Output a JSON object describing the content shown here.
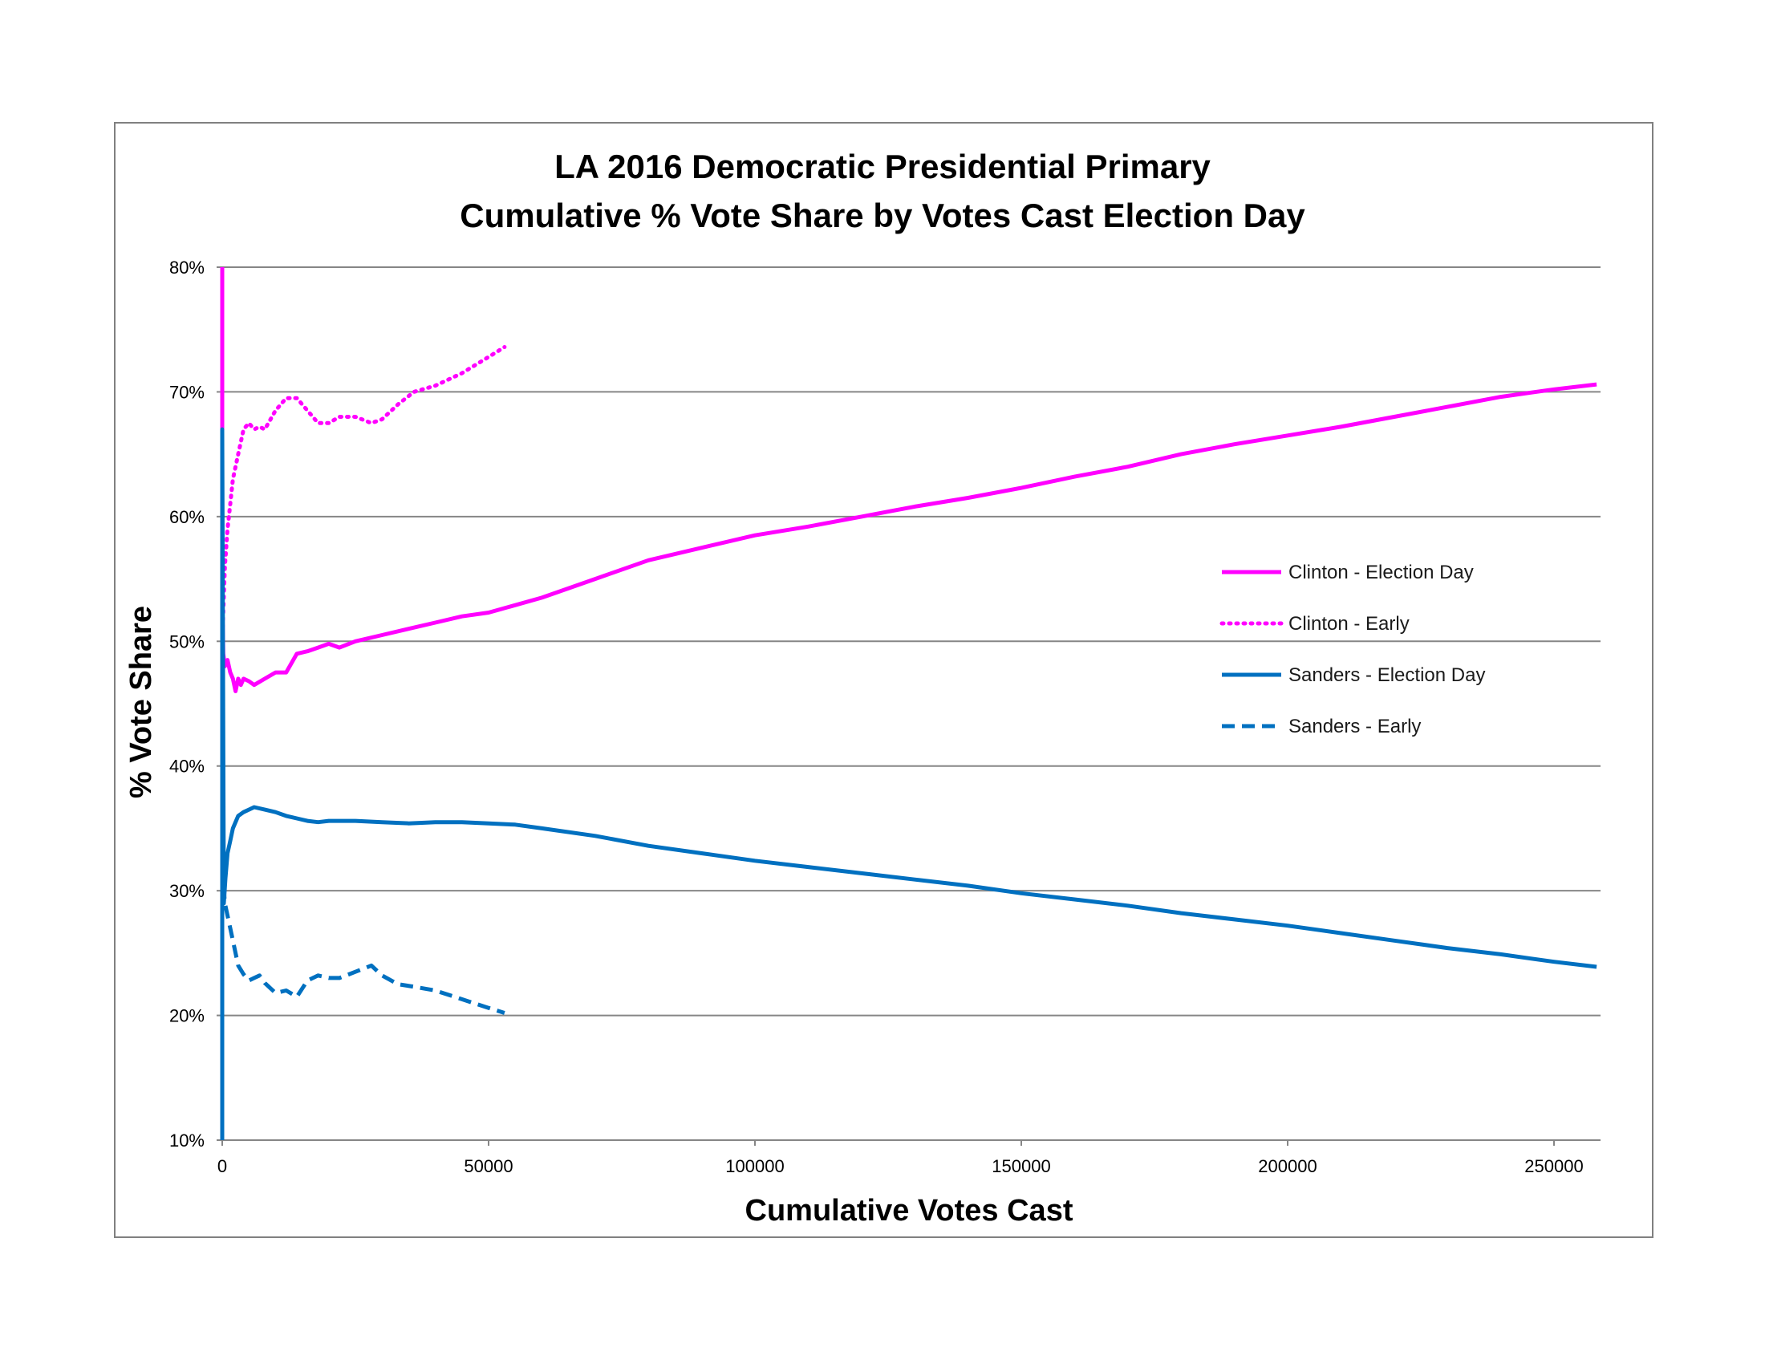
{
  "chart_data": {
    "type": "line",
    "title_line1": "LA 2016 Democratic Presidential Primary",
    "title_line2": "Cumulative % Vote Share by Votes Cast Election Day",
    "xlabel": "Cumulative Votes Cast",
    "ylabel": "% Vote Share",
    "xlim": [
      0,
      260000
    ],
    "ylim": [
      10,
      80
    ],
    "x_ticks": [
      0,
      50000,
      100000,
      150000,
      200000,
      250000
    ],
    "x_tick_labels": [
      "0",
      "50000",
      "100000",
      "150000",
      "200000",
      "250000"
    ],
    "y_ticks": [
      10,
      20,
      30,
      40,
      50,
      60,
      70,
      80
    ],
    "y_tick_labels": [
      "10%",
      "20%",
      "30%",
      "40%",
      "50%",
      "60%",
      "70%",
      "80%"
    ],
    "grid": "horizontal",
    "legend_position": "right",
    "series": [
      {
        "name": "Clinton - Election Day",
        "color": "#FF00FF",
        "style": "solid",
        "x": [
          0,
          0,
          200,
          500,
          1000,
          1500,
          2000,
          2500,
          3000,
          3500,
          4000,
          5000,
          6000,
          8000,
          10000,
          12000,
          14000,
          16000,
          18000,
          20000,
          22000,
          25000,
          30000,
          35000,
          40000,
          45000,
          50000,
          60000,
          70000,
          80000,
          90000,
          100000,
          110000,
          120000,
          130000,
          140000,
          150000,
          160000,
          170000,
          180000,
          190000,
          200000,
          210000,
          220000,
          230000,
          240000,
          250000,
          258000
        ],
        "y": [
          80,
          54,
          49,
          48,
          48.5,
          47.5,
          47,
          46,
          47,
          46.5,
          47,
          46.8,
          46.5,
          47,
          47.5,
          47.5,
          49,
          49.2,
          49.5,
          49.8,
          49.5,
          50,
          50.5,
          51,
          51.5,
          52,
          52.3,
          53.5,
          55,
          56.5,
          57.5,
          58.5,
          59.2,
          60,
          60.8,
          61.5,
          62.3,
          63.2,
          64,
          65,
          65.8,
          66.5,
          67.2,
          68,
          68.8,
          69.6,
          70.2,
          70.6
        ]
      },
      {
        "name": "Clinton - Early",
        "color": "#FF00FF",
        "style": "dotted",
        "x": [
          0,
          500,
          1000,
          1500,
          2000,
          3000,
          4000,
          5000,
          6000,
          7000,
          8000,
          10000,
          12000,
          14000,
          16000,
          18000,
          20000,
          22000,
          25000,
          28000,
          30000,
          33000,
          36000,
          40000,
          45000,
          50000,
          53000
        ],
        "y": [
          50,
          56,
          59,
          61,
          63,
          65,
          67,
          67.5,
          67,
          67.2,
          67,
          68.5,
          69.5,
          69.5,
          68.5,
          67.5,
          67.5,
          68,
          68,
          67.5,
          67.8,
          69,
          70,
          70.5,
          71.5,
          72.8,
          73.6
        ]
      },
      {
        "name": "Sanders - Election Day",
        "color": "#0070C0",
        "style": "solid",
        "x": [
          0,
          0,
          300,
          600,
          1000,
          1500,
          2000,
          3000,
          4000,
          5000,
          6000,
          8000,
          10000,
          12000,
          14000,
          16000,
          18000,
          20000,
          25000,
          30000,
          35000,
          40000,
          45000,
          50000,
          55000,
          60000,
          70000,
          80000,
          90000,
          100000,
          110000,
          120000,
          130000,
          140000,
          150000,
          160000,
          170000,
          180000,
          190000,
          200000,
          210000,
          220000,
          230000,
          240000,
          250000,
          258000
        ],
        "y": [
          10,
          67,
          29,
          31,
          33,
          34,
          35,
          36,
          36.3,
          36.5,
          36.7,
          36.5,
          36.3,
          36,
          35.8,
          35.6,
          35.5,
          35.6,
          35.6,
          35.5,
          35.4,
          35.5,
          35.5,
          35.4,
          35.3,
          35,
          34.4,
          33.6,
          33,
          32.4,
          31.9,
          31.4,
          30.9,
          30.4,
          29.8,
          29.3,
          28.8,
          28.2,
          27.7,
          27.2,
          26.6,
          26,
          25.4,
          24.9,
          24.3,
          23.9
        ]
      },
      {
        "name": "Sanders - Early",
        "color": "#0070C0",
        "style": "dashed",
        "x": [
          0,
          500,
          1000,
          1500,
          2000,
          3000,
          4000,
          5000,
          6000,
          7000,
          8000,
          10000,
          12000,
          14000,
          16000,
          18000,
          20000,
          22000,
          25000,
          28000,
          30000,
          33000,
          36000,
          40000,
          45000,
          50000,
          53000
        ],
        "y": [
          32,
          29,
          28,
          27,
          26,
          24,
          23.3,
          22.8,
          23,
          23.2,
          22.6,
          21.8,
          22,
          21.5,
          22.8,
          23.2,
          23,
          23,
          23.5,
          24,
          23.2,
          22.5,
          22.3,
          22,
          21.3,
          20.6,
          20.2
        ]
      }
    ]
  }
}
